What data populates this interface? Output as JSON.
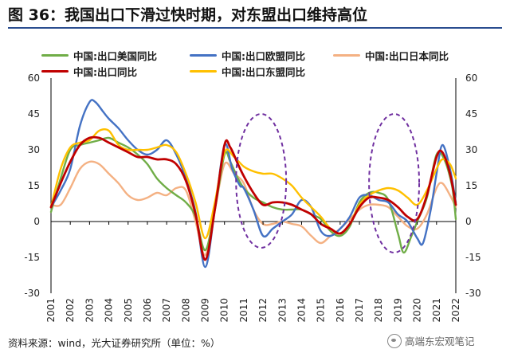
{
  "title": "图 36：我国出口下滑过快时期，对东盟出口维持高位",
  "source": "资料来源：wind，光大证券研究所（单位：%）",
  "watermark": "高端东宏观笔记",
  "chart_data": {
    "type": "line",
    "title": "图 36：我国出口下滑过快时期，对东盟出口维持高位",
    "xlabel": "",
    "ylabel": "单位：%",
    "ylim": [
      -30,
      60
    ],
    "yticks": [
      60,
      45,
      30,
      15,
      0,
      -15,
      -30
    ],
    "x": [
      2001,
      2002,
      2003,
      2004,
      2005,
      2006,
      2007,
      2008,
      2009,
      2010,
      2011,
      2012,
      2013,
      2014,
      2015,
      2016,
      2017,
      2018,
      2019,
      2020,
      2021,
      2022
    ],
    "xtick_labels": [
      "2001",
      "2002",
      "2003",
      "2004",
      "2005",
      "2006",
      "2007",
      "2008",
      "2009",
      "2010",
      "2011",
      "2012",
      "2013",
      "2014",
      "2015",
      "2016",
      "2017",
      "2018",
      "2019",
      "2020",
      "2021",
      "2022"
    ],
    "legend_position": "top",
    "series": [
      {
        "name": "中国:出口美国同比",
        "color": "#70ad47",
        "points": [
          [
            2001.0,
            4
          ],
          [
            2001.5,
            18
          ],
          [
            2002.0,
            30
          ],
          [
            2002.5,
            32
          ],
          [
            2003.0,
            33
          ],
          [
            2003.5,
            34
          ],
          [
            2004.0,
            35
          ],
          [
            2004.5,
            33
          ],
          [
            2005.0,
            31
          ],
          [
            2005.5,
            28
          ],
          [
            2006.0,
            24
          ],
          [
            2006.5,
            18
          ],
          [
            2007.0,
            14
          ],
          [
            2007.5,
            11
          ],
          [
            2008.0,
            8
          ],
          [
            2008.5,
            2
          ],
          [
            2009.0,
            -12
          ],
          [
            2009.5,
            5
          ],
          [
            2010.0,
            28
          ],
          [
            2010.3,
            25
          ],
          [
            2010.7,
            18
          ],
          [
            2011.0,
            14
          ],
          [
            2011.5,
            10
          ],
          [
            2012.0,
            8
          ],
          [
            2012.5,
            6
          ],
          [
            2013.0,
            5
          ],
          [
            2013.5,
            5
          ],
          [
            2014.0,
            5
          ],
          [
            2014.5,
            3
          ],
          [
            2015.0,
            1
          ],
          [
            2015.5,
            -4
          ],
          [
            2016.0,
            -6
          ],
          [
            2016.5,
            -2
          ],
          [
            2017.0,
            8
          ],
          [
            2017.5,
            12
          ],
          [
            2018.0,
            12
          ],
          [
            2018.5,
            9
          ],
          [
            2019.0,
            -5
          ],
          [
            2019.3,
            -13
          ],
          [
            2019.7,
            -6
          ],
          [
            2020.0,
            0
          ],
          [
            2020.5,
            10
          ],
          [
            2021.0,
            28
          ],
          [
            2021.4,
            26
          ],
          [
            2021.8,
            15
          ],
          [
            2022.0,
            1
          ]
        ]
      },
      {
        "name": "中国:出口欧盟同比",
        "color": "#4472c4",
        "points": [
          [
            2001.0,
            6
          ],
          [
            2001.5,
            13
          ],
          [
            2002.0,
            22
          ],
          [
            2002.5,
            40
          ],
          [
            2003.0,
            50
          ],
          [
            2003.3,
            50
          ],
          [
            2003.7,
            46
          ],
          [
            2004.0,
            43
          ],
          [
            2004.5,
            39
          ],
          [
            2005.0,
            34
          ],
          [
            2005.5,
            30
          ],
          [
            2006.0,
            28
          ],
          [
            2006.5,
            30
          ],
          [
            2007.0,
            34
          ],
          [
            2007.5,
            28
          ],
          [
            2008.0,
            18
          ],
          [
            2008.5,
            4
          ],
          [
            2009.0,
            -19
          ],
          [
            2009.5,
            5
          ],
          [
            2010.0,
            32
          ],
          [
            2010.4,
            22
          ],
          [
            2010.8,
            15
          ],
          [
            2011.0,
            14
          ],
          [
            2011.5,
            5
          ],
          [
            2012.0,
            -6
          ],
          [
            2012.5,
            -3
          ],
          [
            2013.0,
            0
          ],
          [
            2013.5,
            3
          ],
          [
            2014.0,
            9
          ],
          [
            2014.5,
            6
          ],
          [
            2015.0,
            -4
          ],
          [
            2015.5,
            -6
          ],
          [
            2016.0,
            -3
          ],
          [
            2016.5,
            2
          ],
          [
            2017.0,
            10
          ],
          [
            2017.5,
            11
          ],
          [
            2018.0,
            9
          ],
          [
            2018.5,
            8
          ],
          [
            2019.0,
            3
          ],
          [
            2019.5,
            0
          ],
          [
            2020.0,
            -7
          ],
          [
            2020.3,
            -9
          ],
          [
            2020.7,
            5
          ],
          [
            2021.0,
            20
          ],
          [
            2021.3,
            32
          ],
          [
            2021.7,
            22
          ],
          [
            2022.0,
            8
          ]
        ]
      },
      {
        "name": "中国:出口日本同比",
        "color": "#f4b183",
        "points": [
          [
            2001.0,
            7
          ],
          [
            2001.5,
            7
          ],
          [
            2002.0,
            14
          ],
          [
            2002.5,
            22
          ],
          [
            2003.0,
            25
          ],
          [
            2003.5,
            24
          ],
          [
            2004.0,
            20
          ],
          [
            2004.5,
            16
          ],
          [
            2005.0,
            11
          ],
          [
            2005.5,
            9
          ],
          [
            2006.0,
            10
          ],
          [
            2006.5,
            12
          ],
          [
            2007.0,
            11
          ],
          [
            2007.5,
            14
          ],
          [
            2008.0,
            13
          ],
          [
            2008.5,
            0
          ],
          [
            2009.0,
            -14
          ],
          [
            2009.5,
            5
          ],
          [
            2010.0,
            24
          ],
          [
            2010.5,
            20
          ],
          [
            2011.0,
            16
          ],
          [
            2011.5,
            5
          ],
          [
            2012.0,
            -1
          ],
          [
            2012.5,
            -1
          ],
          [
            2013.0,
            0
          ],
          [
            2013.5,
            -1
          ],
          [
            2014.0,
            -2
          ],
          [
            2014.5,
            -6
          ],
          [
            2015.0,
            -9
          ],
          [
            2015.5,
            -6
          ],
          [
            2016.0,
            -3
          ],
          [
            2016.5,
            1
          ],
          [
            2017.0,
            5
          ],
          [
            2017.5,
            7
          ],
          [
            2018.0,
            7
          ],
          [
            2018.5,
            6
          ],
          [
            2019.0,
            2
          ],
          [
            2019.5,
            -2
          ],
          [
            2020.0,
            -3
          ],
          [
            2020.5,
            3
          ],
          [
            2021.0,
            14
          ],
          [
            2021.3,
            16
          ],
          [
            2021.7,
            11
          ],
          [
            2022.0,
            6
          ]
        ]
      },
      {
        "name": "中国:出口同比",
        "color": "#c00000",
        "points": [
          [
            2001.0,
            6
          ],
          [
            2001.5,
            16
          ],
          [
            2002.0,
            25
          ],
          [
            2002.5,
            32
          ],
          [
            2003.0,
            35
          ],
          [
            2003.5,
            35
          ],
          [
            2004.0,
            33
          ],
          [
            2004.5,
            31
          ],
          [
            2005.0,
            29
          ],
          [
            2005.5,
            27
          ],
          [
            2006.0,
            27
          ],
          [
            2006.5,
            26
          ],
          [
            2007.0,
            26
          ],
          [
            2007.5,
            24
          ],
          [
            2008.0,
            17
          ],
          [
            2008.5,
            3
          ],
          [
            2009.0,
            -16
          ],
          [
            2009.5,
            5
          ],
          [
            2010.0,
            32
          ],
          [
            2010.3,
            31
          ],
          [
            2010.7,
            24
          ],
          [
            2011.0,
            19
          ],
          [
            2011.5,
            12
          ],
          [
            2012.0,
            7
          ],
          [
            2012.5,
            8
          ],
          [
            2013.0,
            8
          ],
          [
            2013.5,
            7
          ],
          [
            2014.0,
            5
          ],
          [
            2014.5,
            3
          ],
          [
            2015.0,
            -1
          ],
          [
            2015.5,
            -3
          ],
          [
            2016.0,
            -5
          ],
          [
            2016.5,
            -1
          ],
          [
            2017.0,
            6
          ],
          [
            2017.5,
            10
          ],
          [
            2018.0,
            10
          ],
          [
            2018.5,
            9
          ],
          [
            2019.0,
            6
          ],
          [
            2019.5,
            2
          ],
          [
            2020.0,
            1
          ],
          [
            2020.5,
            11
          ],
          [
            2021.0,
            27
          ],
          [
            2021.3,
            29
          ],
          [
            2021.7,
            20
          ],
          [
            2022.0,
            7
          ]
        ]
      },
      {
        "name": "中国:出口东盟同比",
        "color": "#ffc000",
        "points": [
          [
            2001.0,
            6
          ],
          [
            2001.5,
            22
          ],
          [
            2002.0,
            31
          ],
          [
            2002.5,
            33
          ],
          [
            2003.0,
            34
          ],
          [
            2003.5,
            38
          ],
          [
            2004.0,
            38
          ],
          [
            2004.5,
            32
          ],
          [
            2005.0,
            30
          ],
          [
            2005.5,
            30
          ],
          [
            2006.0,
            30
          ],
          [
            2006.5,
            31
          ],
          [
            2007.0,
            32
          ],
          [
            2007.5,
            29
          ],
          [
            2008.0,
            20
          ],
          [
            2008.5,
            8
          ],
          [
            2009.0,
            -7
          ],
          [
            2009.5,
            8
          ],
          [
            2010.0,
            29
          ],
          [
            2010.5,
            27
          ],
          [
            2011.0,
            23
          ],
          [
            2011.5,
            21
          ],
          [
            2012.0,
            20
          ],
          [
            2012.5,
            20
          ],
          [
            2013.0,
            18
          ],
          [
            2013.5,
            15
          ],
          [
            2014.0,
            10
          ],
          [
            2014.5,
            6
          ],
          [
            2015.0,
            2
          ],
          [
            2015.5,
            -3
          ],
          [
            2016.0,
            -5
          ],
          [
            2016.5,
            -1
          ],
          [
            2017.0,
            7
          ],
          [
            2017.5,
            11
          ],
          [
            2018.0,
            13
          ],
          [
            2018.5,
            14
          ],
          [
            2019.0,
            13
          ],
          [
            2019.5,
            10
          ],
          [
            2020.0,
            7
          ],
          [
            2020.5,
            13
          ],
          [
            2021.0,
            22
          ],
          [
            2021.3,
            26
          ],
          [
            2021.7,
            24
          ],
          [
            2022.0,
            18
          ]
        ]
      }
    ],
    "annotations": [
      {
        "type": "dashed-ellipse",
        "color": "#7030a0",
        "x_center": 2011.9,
        "y_center": 17,
        "x_radius": 1.3,
        "y_radius": 28
      },
      {
        "type": "dashed-ellipse",
        "color": "#7030a0",
        "x_center": 2018.8,
        "y_center": 16,
        "x_radius": 1.3,
        "y_radius": 29
      }
    ]
  }
}
